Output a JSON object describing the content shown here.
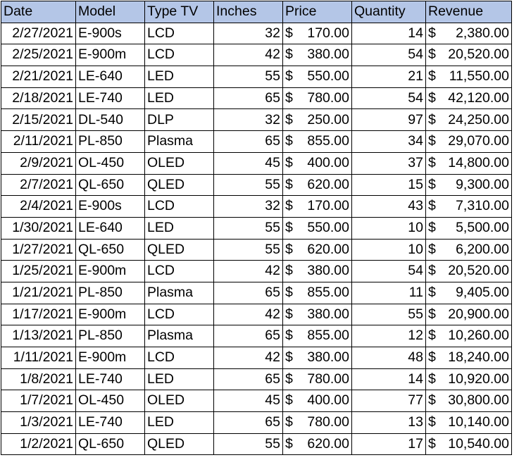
{
  "headers": [
    "Date",
    "Model",
    "Type TV",
    "Inches",
    "Price",
    "Quantity",
    "Revenue"
  ],
  "currency_symbol": "$",
  "header_fill_color": "#b4c6e7",
  "rows": [
    {
      "date": "2/27/2021",
      "model": "E-900s",
      "type": "LCD",
      "inches": "32",
      "price": "170.00",
      "quantity": "14",
      "revenue": "  2,380.00"
    },
    {
      "date": "2/25/2021",
      "model": "E-900m",
      "type": "LCD",
      "inches": "42",
      "price": "380.00",
      "quantity": "54",
      "revenue": "20,520.00"
    },
    {
      "date": "2/21/2021",
      "model": "LE-640",
      "type": "LED",
      "inches": "55",
      "price": "550.00",
      "quantity": "21",
      "revenue": "11,550.00"
    },
    {
      "date": "2/18/2021",
      "model": "LE-740",
      "type": "LED",
      "inches": "65",
      "price": "780.00",
      "quantity": "54",
      "revenue": "42,120.00"
    },
    {
      "date": "2/15/2021",
      "model": "DL-540",
      "type": "DLP",
      "inches": "32",
      "price": "250.00",
      "quantity": "97",
      "revenue": "24,250.00"
    },
    {
      "date": "2/11/2021",
      "model": "PL-850",
      "type": "Plasma",
      "inches": "65",
      "price": "855.00",
      "quantity": "34",
      "revenue": "29,070.00"
    },
    {
      "date": "2/9/2021",
      "model": "OL-450",
      "type": "OLED",
      "inches": "45",
      "price": "400.00",
      "quantity": "37",
      "revenue": "14,800.00"
    },
    {
      "date": "2/7/2021",
      "model": "QL-650",
      "type": "QLED",
      "inches": "55",
      "price": "620.00",
      "quantity": "15",
      "revenue": "  9,300.00"
    },
    {
      "date": "2/4/2021",
      "model": "E-900s",
      "type": "LCD",
      "inches": "32",
      "price": "170.00",
      "quantity": "43",
      "revenue": "  7,310.00"
    },
    {
      "date": "1/30/2021",
      "model": "LE-640",
      "type": "LED",
      "inches": "55",
      "price": "550.00",
      "quantity": "10",
      "revenue": "  5,500.00"
    },
    {
      "date": "1/27/2021",
      "model": "QL-650",
      "type": "QLED",
      "inches": "55",
      "price": "620.00",
      "quantity": "10",
      "revenue": "  6,200.00"
    },
    {
      "date": "1/25/2021",
      "model": "E-900m",
      "type": "LCD",
      "inches": "42",
      "price": "380.00",
      "quantity": "54",
      "revenue": "20,520.00"
    },
    {
      "date": "1/21/2021",
      "model": "PL-850",
      "type": "Plasma",
      "inches": "65",
      "price": "855.00",
      "quantity": "11",
      "revenue": "  9,405.00"
    },
    {
      "date": "1/17/2021",
      "model": "E-900m",
      "type": "LCD",
      "inches": "42",
      "price": "380.00",
      "quantity": "55",
      "revenue": "20,900.00"
    },
    {
      "date": "1/13/2021",
      "model": "PL-850",
      "type": "Plasma",
      "inches": "65",
      "price": "855.00",
      "quantity": "12",
      "revenue": "10,260.00"
    },
    {
      "date": "1/11/2021",
      "model": "E-900m",
      "type": "LCD",
      "inches": "42",
      "price": "380.00",
      "quantity": "48",
      "revenue": "18,240.00"
    },
    {
      "date": "1/8/2021",
      "model": "LE-740",
      "type": "LED",
      "inches": "65",
      "price": "780.00",
      "quantity": "14",
      "revenue": "10,920.00"
    },
    {
      "date": "1/7/2021",
      "model": "OL-450",
      "type": "OLED",
      "inches": "45",
      "price": "400.00",
      "quantity": "77",
      "revenue": "30,800.00"
    },
    {
      "date": "1/3/2021",
      "model": "LE-740",
      "type": "LED",
      "inches": "65",
      "price": "780.00",
      "quantity": "13",
      "revenue": "10,140.00"
    },
    {
      "date": "1/2/2021",
      "model": "QL-650",
      "type": "QLED",
      "inches": "55",
      "price": "620.00",
      "quantity": "17",
      "revenue": "10,540.00"
    }
  ]
}
